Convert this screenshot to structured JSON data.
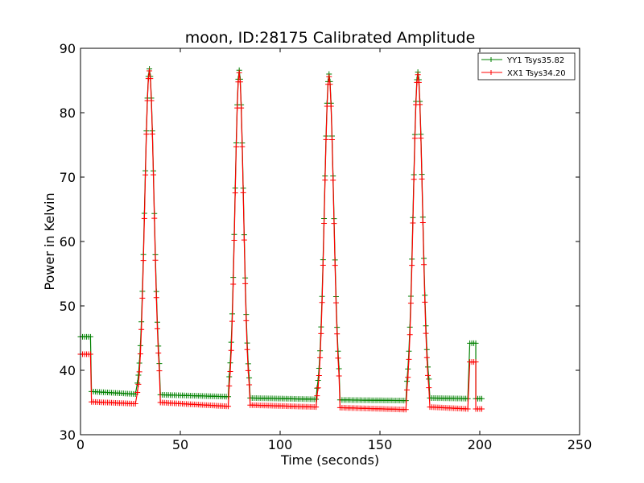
{
  "chart_data": {
    "type": "line",
    "title": "moon, ID:28175 Calibrated Amplitude",
    "xlabel": "Time (seconds)",
    "ylabel": "Power in Kelvin",
    "xlim": [
      0,
      250
    ],
    "ylim": [
      30,
      90
    ],
    "xticks": [
      "0",
      "50",
      "100",
      "150",
      "200",
      "250"
    ],
    "yticks": [
      "30",
      "40",
      "50",
      "60",
      "70",
      "80",
      "90"
    ],
    "grid": false,
    "legend_position": "top-right",
    "marker": "plus",
    "series": [
      {
        "name": "YY1 Tsys35.82",
        "color": "#008000",
        "baseline_segments": [
          {
            "start": 0,
            "end": 5.5,
            "level": 45.2
          },
          {
            "start": 5.5,
            "end": 28,
            "level_start": 36.7,
            "level_end": 36.3
          },
          {
            "start": 40,
            "end": 74,
            "level_start": 36.2,
            "level_end": 35.9
          },
          {
            "start": 85,
            "end": 118,
            "level_start": 35.7,
            "level_end": 35.5
          },
          {
            "start": 130,
            "end": 163,
            "level_start": 35.4,
            "level_end": 35.3
          },
          {
            "start": 175,
            "end": 194,
            "level_start": 35.7,
            "level_end": 35.6
          },
          {
            "start": 195,
            "end": 198,
            "level": 44.2
          },
          {
            "start": 198,
            "end": 201,
            "level": 35.6
          }
        ],
        "peaks": [
          {
            "start": 28,
            "center": 34.5,
            "end": 40,
            "peak": 86.8
          },
          {
            "start": 74,
            "center": 79.5,
            "end": 85,
            "peak": 86.6
          },
          {
            "start": 118,
            "center": 124.5,
            "end": 130,
            "peak": 86.0
          },
          {
            "start": 163,
            "center": 169.0,
            "end": 175,
            "peak": 86.3
          }
        ]
      },
      {
        "name": "XX1 Tsys34.20",
        "color": "#ff0000",
        "baseline_segments": [
          {
            "start": 0,
            "end": 5.5,
            "level": 42.5
          },
          {
            "start": 5.5,
            "end": 28,
            "level_start": 35.1,
            "level_end": 34.8
          },
          {
            "start": 40,
            "end": 74,
            "level_start": 35.0,
            "level_end": 34.4
          },
          {
            "start": 85,
            "end": 118,
            "level_start": 34.6,
            "level_end": 34.3
          },
          {
            "start": 130,
            "end": 163,
            "level_start": 34.2,
            "level_end": 33.9
          },
          {
            "start": 175,
            "end": 194,
            "level_start": 34.3,
            "level_end": 34.0
          },
          {
            "start": 195,
            "end": 198,
            "level": 41.3
          },
          {
            "start": 198,
            "end": 201,
            "level": 34.0
          }
        ],
        "peaks": [
          {
            "start": 28,
            "center": 34.5,
            "end": 40,
            "peak": 86.5
          },
          {
            "start": 74,
            "center": 79.5,
            "end": 85,
            "peak": 86.2
          },
          {
            "start": 118,
            "center": 124.5,
            "end": 130,
            "peak": 85.6
          },
          {
            "start": 163,
            "center": 169.0,
            "end": 175,
            "peak": 85.9
          }
        ]
      }
    ]
  }
}
